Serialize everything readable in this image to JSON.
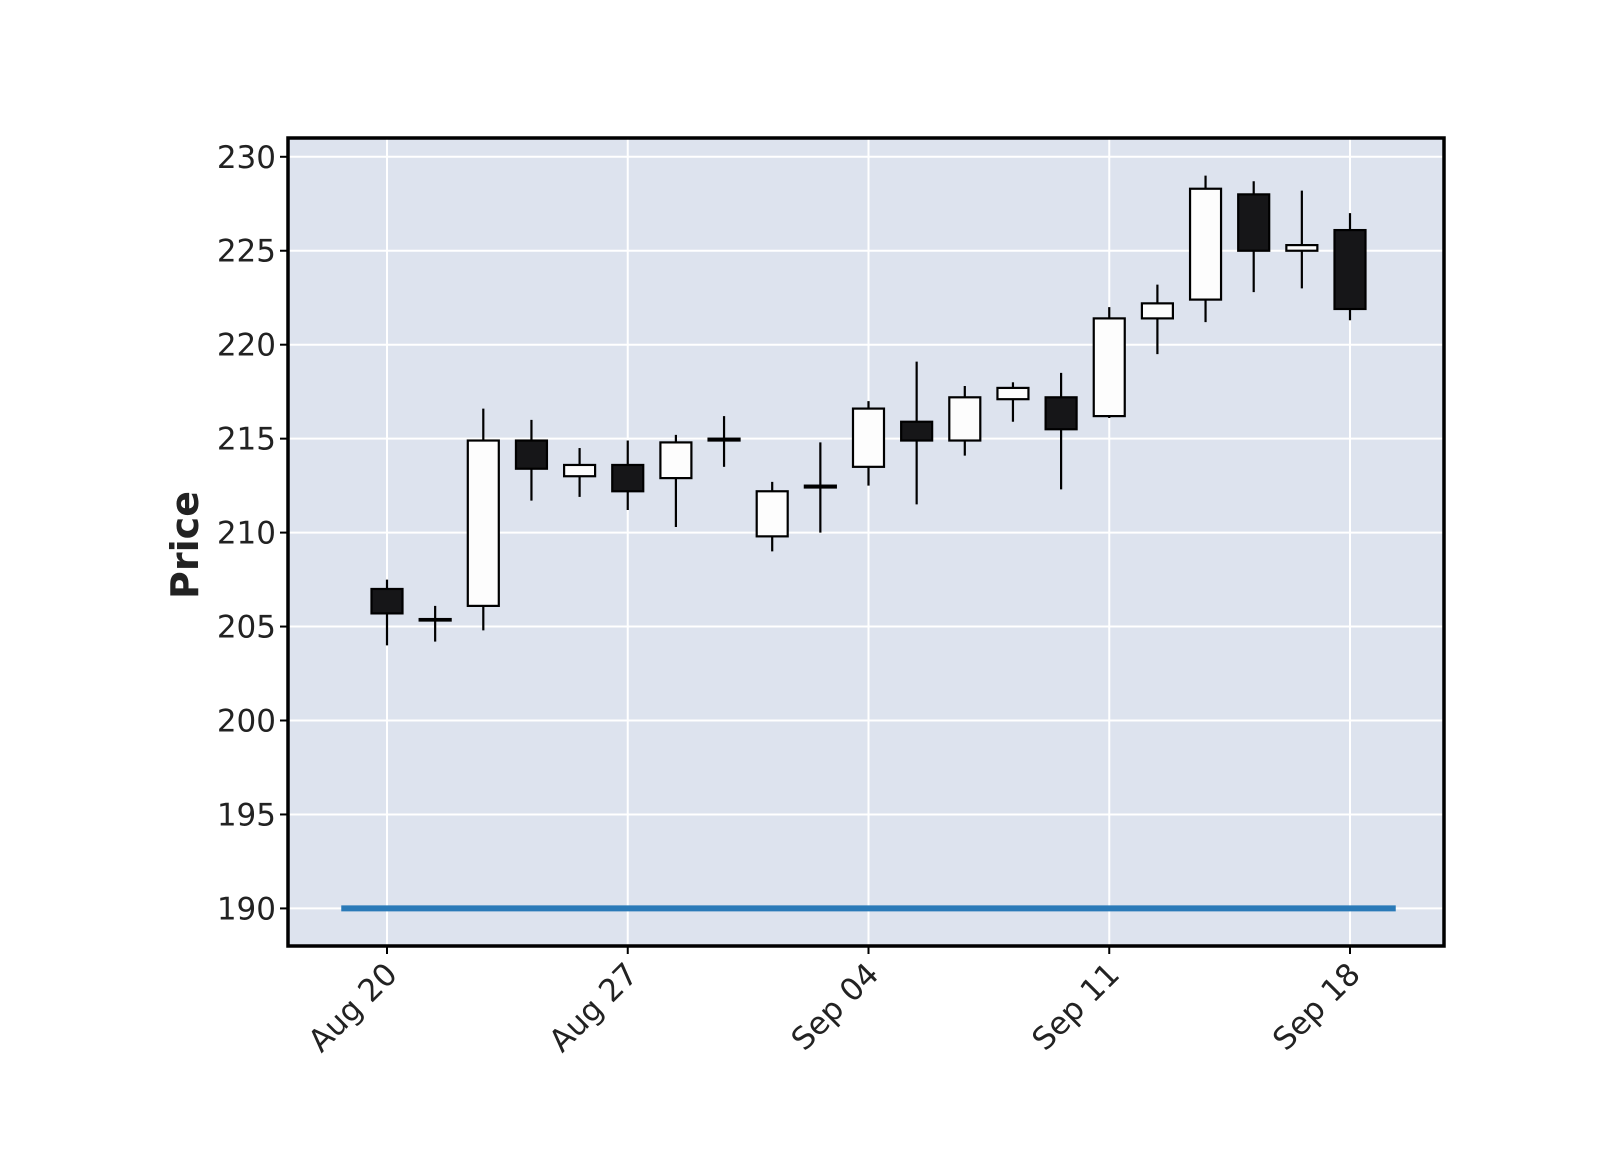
{
  "chart_data": {
    "type": "candlestick",
    "ylabel": "Price",
    "ylim": [
      188,
      231
    ],
    "y_ticks": [
      190,
      195,
      200,
      205,
      210,
      215,
      220,
      225,
      230
    ],
    "x_tick_labels": [
      "Aug 20",
      "Aug 27",
      "Sep 04",
      "Sep 11",
      "Sep 18"
    ],
    "x_tick_index": [
      0,
      5,
      10,
      15,
      20
    ],
    "grid": true,
    "colors": {
      "background": "#dde3ee",
      "grid": "#ffffff",
      "up_fill": "#fdfdfd",
      "down_fill": "#161618",
      "edge": "#000000",
      "line": "#2a7ab8"
    },
    "candles": [
      {
        "o": 207.0,
        "h": 207.5,
        "l": 204.0,
        "c": 205.7
      },
      {
        "o": 205.4,
        "h": 206.1,
        "l": 204.2,
        "c": 205.4
      },
      {
        "o": 206.1,
        "h": 216.6,
        "l": 204.8,
        "c": 214.9
      },
      {
        "o": 214.9,
        "h": 216.0,
        "l": 211.7,
        "c": 213.4
      },
      {
        "o": 213.0,
        "h": 214.5,
        "l": 211.9,
        "c": 213.6
      },
      {
        "o": 213.6,
        "h": 214.9,
        "l": 211.2,
        "c": 212.2
      },
      {
        "o": 212.9,
        "h": 215.2,
        "l": 210.3,
        "c": 214.8
      },
      {
        "o": 214.9,
        "h": 216.2,
        "l": 213.5,
        "c": 215.0
      },
      {
        "o": 209.8,
        "h": 212.7,
        "l": 209.0,
        "c": 212.2
      },
      {
        "o": 212.4,
        "h": 214.8,
        "l": 210.0,
        "c": 212.5
      },
      {
        "o": 213.5,
        "h": 217.0,
        "l": 212.5,
        "c": 216.6
      },
      {
        "o": 215.9,
        "h": 219.1,
        "l": 211.5,
        "c": 214.9
      },
      {
        "o": 214.9,
        "h": 217.8,
        "l": 214.1,
        "c": 217.2
      },
      {
        "o": 217.1,
        "h": 218.0,
        "l": 215.9,
        "c": 217.7
      },
      {
        "o": 217.2,
        "h": 218.5,
        "l": 212.3,
        "c": 215.5
      },
      {
        "o": 216.2,
        "h": 222.0,
        "l": 216.1,
        "c": 221.4
      },
      {
        "o": 221.4,
        "h": 223.2,
        "l": 219.5,
        "c": 222.2
      },
      {
        "o": 222.4,
        "h": 229.0,
        "l": 221.2,
        "c": 228.3
      },
      {
        "o": 228.0,
        "h": 228.7,
        "l": 222.8,
        "c": 225.0
      },
      {
        "o": 225.0,
        "h": 228.2,
        "l": 223.0,
        "c": 225.3
      },
      {
        "o": 226.1,
        "h": 227.0,
        "l": 221.3,
        "c": 221.9
      }
    ],
    "line_series": {
      "start_index": -0.95,
      "end_index": 20.95,
      "y": 190
    }
  }
}
